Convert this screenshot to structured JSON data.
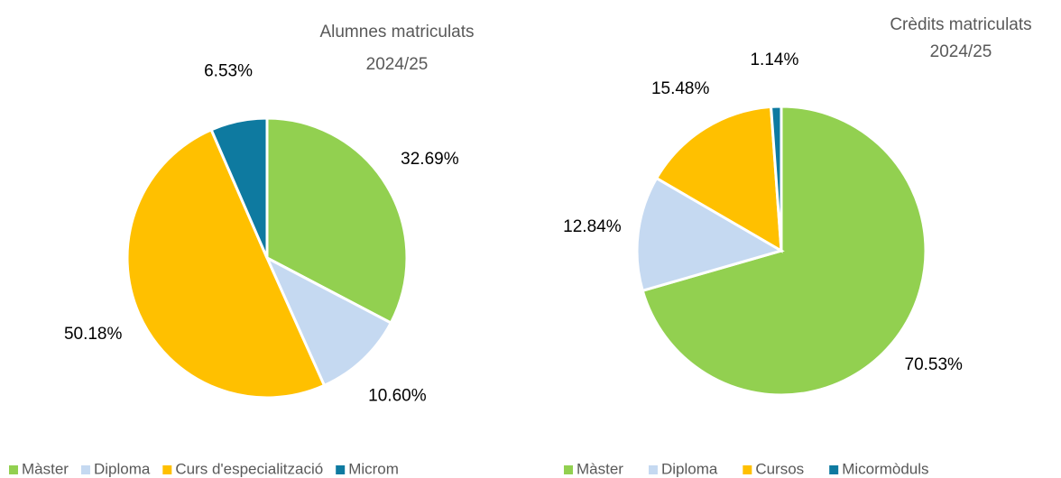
{
  "chart_data": [
    {
      "type": "pie",
      "title": "Alumnes matriculats",
      "subtitle": "2024/25",
      "categories": [
        "Màster",
        "Diploma",
        "Curs d'especialització",
        "Microm"
      ],
      "values": [
        32.69,
        10.6,
        50.18,
        6.53
      ],
      "value_labels": [
        "32.69%",
        "10.60%",
        "50.18%",
        "6.53%"
      ],
      "colors": [
        "#92d050",
        "#c5d9f1",
        "#ffc000",
        "#0e7aa0"
      ],
      "legend": "bottom"
    },
    {
      "type": "pie",
      "title": "Crèdits matriculats",
      "subtitle": "2024/25",
      "categories": [
        "Màster",
        "Diploma",
        "Cursos",
        "Micormòduls"
      ],
      "values": [
        70.53,
        12.84,
        15.48,
        1.14
      ],
      "value_labels": [
        "70.53%",
        "12.84%",
        "15.48%",
        "1.14%"
      ],
      "colors": [
        "#92d050",
        "#c5d9f1",
        "#ffc000",
        "#0e7aa0"
      ],
      "legend": "bottom"
    }
  ]
}
